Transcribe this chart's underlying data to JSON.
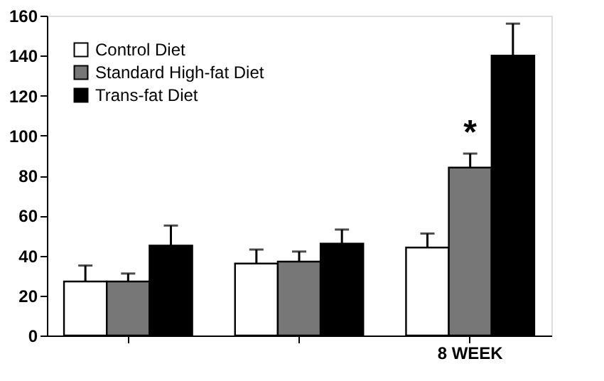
{
  "chart_data": {
    "type": "bar",
    "categories": [
      null,
      null,
      "8 WEEK"
    ],
    "series": [
      {
        "name": "Control Diet",
        "color": "#ffffff",
        "values": [
          27,
          36,
          44
        ],
        "errors": [
          [
            27,
            35
          ],
          [
            36,
            43
          ],
          [
            44,
            51
          ]
        ]
      },
      {
        "name": "Standard High-fat Diet",
        "color": "#777777",
        "values": [
          27,
          37,
          84
        ],
        "errors": [
          [
            27,
            31
          ],
          [
            37,
            42
          ],
          [
            84,
            91
          ]
        ]
      },
      {
        "name": "Trans-fat Diet",
        "color": "#000000",
        "values": [
          45,
          46,
          140
        ],
        "errors": [
          [
            45,
            55
          ],
          [
            46,
            53
          ],
          [
            140,
            156
          ]
        ]
      }
    ],
    "ylim": [
      0,
      160
    ],
    "yticks": [
      0,
      20,
      40,
      60,
      80,
      100,
      120,
      140,
      160
    ],
    "grid": false,
    "legend": "top left",
    "annotations": [
      {
        "text": "*",
        "x": "8 WEEK",
        "y": 91
      }
    ]
  }
}
